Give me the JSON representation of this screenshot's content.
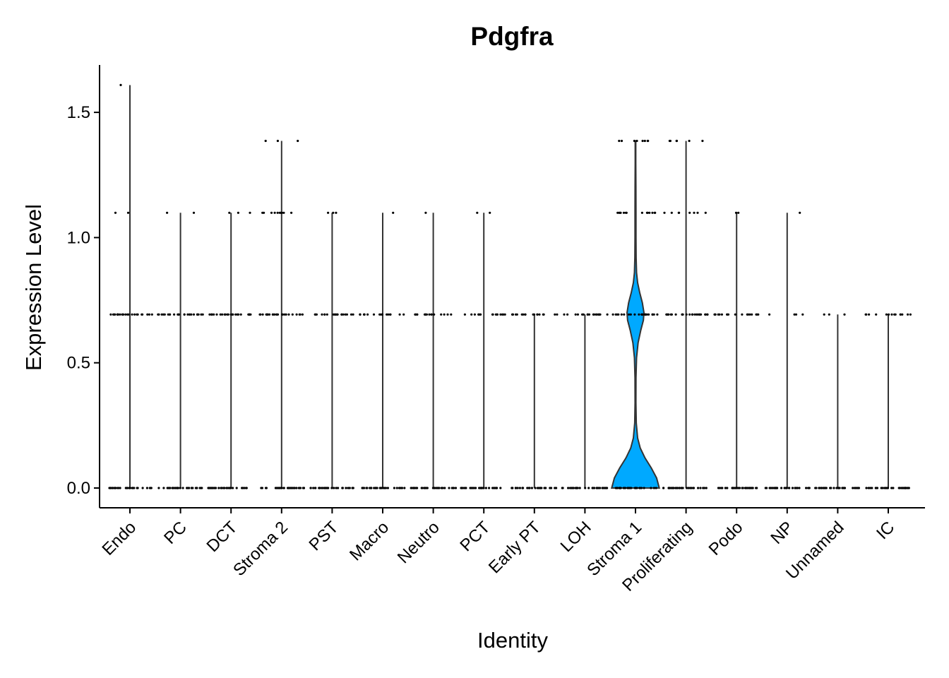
{
  "chart_data": {
    "type": "violin",
    "title": "Pdgfra",
    "xlabel": "Identity",
    "ylabel": "Expression Level",
    "ylim": [
      -0.08,
      1.68
    ],
    "yticks": [
      0.0,
      0.5,
      1.0,
      1.5
    ],
    "ytick_labels": [
      "0.0",
      "0.5",
      "1.0",
      "1.5"
    ],
    "grid": false,
    "legend": "none",
    "colors": {
      "violin_fill": "#00A9FF",
      "line": "#333333",
      "point": "#000000",
      "axis": "#000000"
    },
    "categories": [
      "Endo",
      "PC",
      "DCT",
      "Stroma 2",
      "PST",
      "Macro",
      "Neutro",
      "PCT",
      "Early PT",
      "LOH",
      "Stroma 1",
      "Proliferating",
      "Podo",
      "NP",
      "Unnamed",
      "IC"
    ],
    "series": [
      {
        "category": "Endo",
        "max": 1.609,
        "points": [
          {
            "y": 0.0,
            "n": 30,
            "spread": 0.45
          },
          {
            "y": 0.693,
            "n": 24,
            "spread": 0.45
          },
          {
            "y": 1.099,
            "n": 2,
            "spread": 0.35
          },
          {
            "y": 1.609,
            "n": 1,
            "spread": 0.2
          }
        ]
      },
      {
        "category": "PC",
        "max": 1.099,
        "points": [
          {
            "y": 0.0,
            "n": 30,
            "spread": 0.45
          },
          {
            "y": 0.693,
            "n": 24,
            "spread": 0.45
          },
          {
            "y": 1.099,
            "n": 2,
            "spread": 0.4
          }
        ]
      },
      {
        "category": "DCT",
        "max": 1.099,
        "points": [
          {
            "y": 0.0,
            "n": 30,
            "spread": 0.45
          },
          {
            "y": 0.693,
            "n": 24,
            "spread": 0.45
          },
          {
            "y": 1.099,
            "n": 3,
            "spread": 0.4
          }
        ]
      },
      {
        "category": "Stroma 2",
        "max": 1.386,
        "points": [
          {
            "y": 0.0,
            "n": 30,
            "spread": 0.45
          },
          {
            "y": 0.693,
            "n": 24,
            "spread": 0.45
          },
          {
            "y": 1.099,
            "n": 10,
            "spread": 0.4
          },
          {
            "y": 1.386,
            "n": 3,
            "spread": 0.4
          }
        ]
      },
      {
        "category": "PST",
        "max": 1.099,
        "points": [
          {
            "y": 0.0,
            "n": 30,
            "spread": 0.45
          },
          {
            "y": 0.693,
            "n": 20,
            "spread": 0.45
          },
          {
            "y": 1.099,
            "n": 3,
            "spread": 0.35
          }
        ]
      },
      {
        "category": "Macro",
        "max": 1.099,
        "points": [
          {
            "y": 0.0,
            "n": 30,
            "spread": 0.45
          },
          {
            "y": 0.693,
            "n": 18,
            "spread": 0.45
          },
          {
            "y": 1.099,
            "n": 1,
            "spread": 0.3
          }
        ]
      },
      {
        "category": "Neutro",
        "max": 1.099,
        "points": [
          {
            "y": 0.0,
            "n": 30,
            "spread": 0.45
          },
          {
            "y": 0.693,
            "n": 16,
            "spread": 0.45
          },
          {
            "y": 1.099,
            "n": 1,
            "spread": 0.3
          }
        ]
      },
      {
        "category": "PCT",
        "max": 1.099,
        "points": [
          {
            "y": 0.0,
            "n": 30,
            "spread": 0.45
          },
          {
            "y": 0.693,
            "n": 16,
            "spread": 0.45
          },
          {
            "y": 1.099,
            "n": 2,
            "spread": 0.2
          }
        ]
      },
      {
        "category": "Early PT",
        "max": 0.693,
        "points": [
          {
            "y": 0.0,
            "n": 30,
            "spread": 0.45
          },
          {
            "y": 0.693,
            "n": 18,
            "spread": 0.45
          }
        ]
      },
      {
        "category": "LOH",
        "max": 0.693,
        "points": [
          {
            "y": 0.0,
            "n": 30,
            "spread": 0.45
          },
          {
            "y": 0.693,
            "n": 18,
            "spread": 0.45
          }
        ]
      },
      {
        "category": "Stroma 1",
        "max": 1.386,
        "violin": [
          [
            0.0,
            0.45
          ],
          [
            0.04,
            0.4
          ],
          [
            0.08,
            0.3
          ],
          [
            0.12,
            0.18
          ],
          [
            0.16,
            0.09
          ],
          [
            0.2,
            0.04
          ],
          [
            0.26,
            0.015
          ],
          [
            0.34,
            0.008
          ],
          [
            0.44,
            0.01
          ],
          [
            0.52,
            0.02
          ],
          [
            0.58,
            0.05
          ],
          [
            0.63,
            0.1
          ],
          [
            0.67,
            0.15
          ],
          [
            0.7,
            0.16
          ],
          [
            0.74,
            0.13
          ],
          [
            0.78,
            0.08
          ],
          [
            0.82,
            0.04
          ],
          [
            0.86,
            0.02
          ],
          [
            0.92,
            0.012
          ],
          [
            1.0,
            0.01
          ],
          [
            1.1,
            0.01
          ],
          [
            1.2,
            0.008
          ],
          [
            1.3,
            0.006
          ],
          [
            1.386,
            0.005
          ]
        ],
        "points": [
          {
            "y": 0.0,
            "n": 30,
            "spread": 0.45
          },
          {
            "y": 0.693,
            "n": 24,
            "spread": 0.45
          },
          {
            "y": 1.099,
            "n": 14,
            "spread": 0.4
          },
          {
            "y": 1.386,
            "n": 8,
            "spread": 0.4
          }
        ]
      },
      {
        "category": "Proliferating",
        "max": 1.386,
        "points": [
          {
            "y": 0.0,
            "n": 30,
            "spread": 0.45
          },
          {
            "y": 0.693,
            "n": 24,
            "spread": 0.45
          },
          {
            "y": 1.099,
            "n": 8,
            "spread": 0.45
          },
          {
            "y": 1.386,
            "n": 6,
            "spread": 0.45
          }
        ]
      },
      {
        "category": "Podo",
        "max": 1.099,
        "points": [
          {
            "y": 0.0,
            "n": 30,
            "spread": 0.45
          },
          {
            "y": 0.693,
            "n": 18,
            "spread": 0.45
          },
          {
            "y": 1.099,
            "n": 2,
            "spread": 0.4
          }
        ]
      },
      {
        "category": "NP",
        "max": 1.099,
        "points": [
          {
            "y": 0.0,
            "n": 30,
            "spread": 0.45
          },
          {
            "y": 0.693,
            "n": 4,
            "spread": 0.4
          },
          {
            "y": 1.099,
            "n": 1,
            "spread": 0.3
          }
        ]
      },
      {
        "category": "Unnamed",
        "max": 0.693,
        "points": [
          {
            "y": 0.0,
            "n": 30,
            "spread": 0.45
          },
          {
            "y": 0.693,
            "n": 3,
            "spread": 0.35
          }
        ]
      },
      {
        "category": "IC",
        "max": 0.693,
        "points": [
          {
            "y": 0.0,
            "n": 30,
            "spread": 0.45
          },
          {
            "y": 0.693,
            "n": 14,
            "spread": 0.45
          }
        ]
      }
    ]
  }
}
